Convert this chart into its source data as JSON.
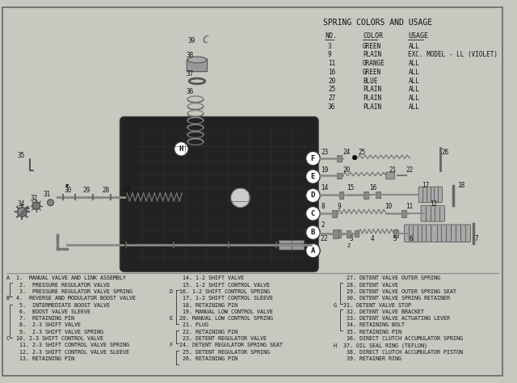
{
  "bg_color": "#c8c8c0",
  "border_color": "#666666",
  "spring_table_title": "SPRING COLORS AND USAGE",
  "spring_table_headers": [
    "NO.",
    "COLOR",
    "USAGE"
  ],
  "spring_table_rows": [
    [
      "3",
      "GREEN",
      "ALL"
    ],
    [
      "9",
      "PLAIN",
      "EXC. MODEL - LL (VIOLET)"
    ],
    [
      "11",
      "ORANGE",
      "ALL"
    ],
    [
      "16",
      "GREEN",
      "ALL"
    ],
    [
      "20",
      "BLUE",
      "ALL"
    ],
    [
      "25",
      "PLAIN",
      "ALL"
    ],
    [
      "27",
      "PLAIN",
      "ALL"
    ],
    [
      "36",
      "PLAIN",
      "ALL"
    ]
  ],
  "legend_col1": [
    "A  1.  MANUAL VALVE AND LINK ASSEMBLY",
    "    2.  PRESSURE REGULATOR VALVE",
    "    3.  PRESSURE REGULATOR VALVE SPRING",
    "B  4.  REVERSE AND MODULATOR BOOST VALVE",
    "    5.  INTERMEDIATE BOOST VALVE",
    "    6.  BOOST VALVE SLEEVE",
    "    7.  RETAINING PIN",
    "    8.  2-3 SHIFT VALVE",
    "    9.  2-3 SHIFT VALVE SPRING",
    "C  10. 2-3 SHIFT CONTROL VALVE",
    "    11. 2-3 SHIFT CONTROL VALVE SPRING",
    "    12. 2-3 SHIFT CONTROL VALVE SLEEVE",
    "    13. RETAINING PIN"
  ],
  "legend_col2": [
    "    14. 1-2 SHIFT VALVE",
    "    15. 1-2 SHIFT CONTROL VALVE",
    "D  16. 1-2 SHIFT CONTROL SPRING",
    "    17. 1-2 SHIFT CONTROL SLEEVE",
    "    18. RETAINING PIN",
    "    19. MANUAL LOW CONTROL VALVE",
    "E  20. MANUAL LOW CONTROL SPRING",
    "    21. PLUG",
    "    22. RETAINING PIN",
    "    23. DETENT REGULATOR VALVE",
    "F  24. DETENT REGULATOR SPRING SEAT",
    "    25. DETENT REGULATOR SPRING",
    "    26. RETAINING PIN"
  ],
  "legend_col3": [
    "    27. DETENT VALVE OUTER SPRING",
    "    28. DETENT VALVE",
    "    29. DETENT VALVE OUTER SPRING SEAT",
    "    30. DETENT VALVE SPRING RETAINER",
    "G  31. DETENT VALVE STOP",
    "    32. DETENT VALVE BRACKET",
    "    33. DETENT VALVE ACTUATING LEVER",
    "    34. RETAINING BOLT",
    "    35. RETAINING PIN",
    "    36. DIRECT CLUTCH ACCUMULATOR SPRING",
    "H  37. OIL SEAL RING (TEFLON)",
    "    38. DIRECT CLUTCH ACCUMULATOR PISTON",
    "    39. RETAINER RING"
  ]
}
